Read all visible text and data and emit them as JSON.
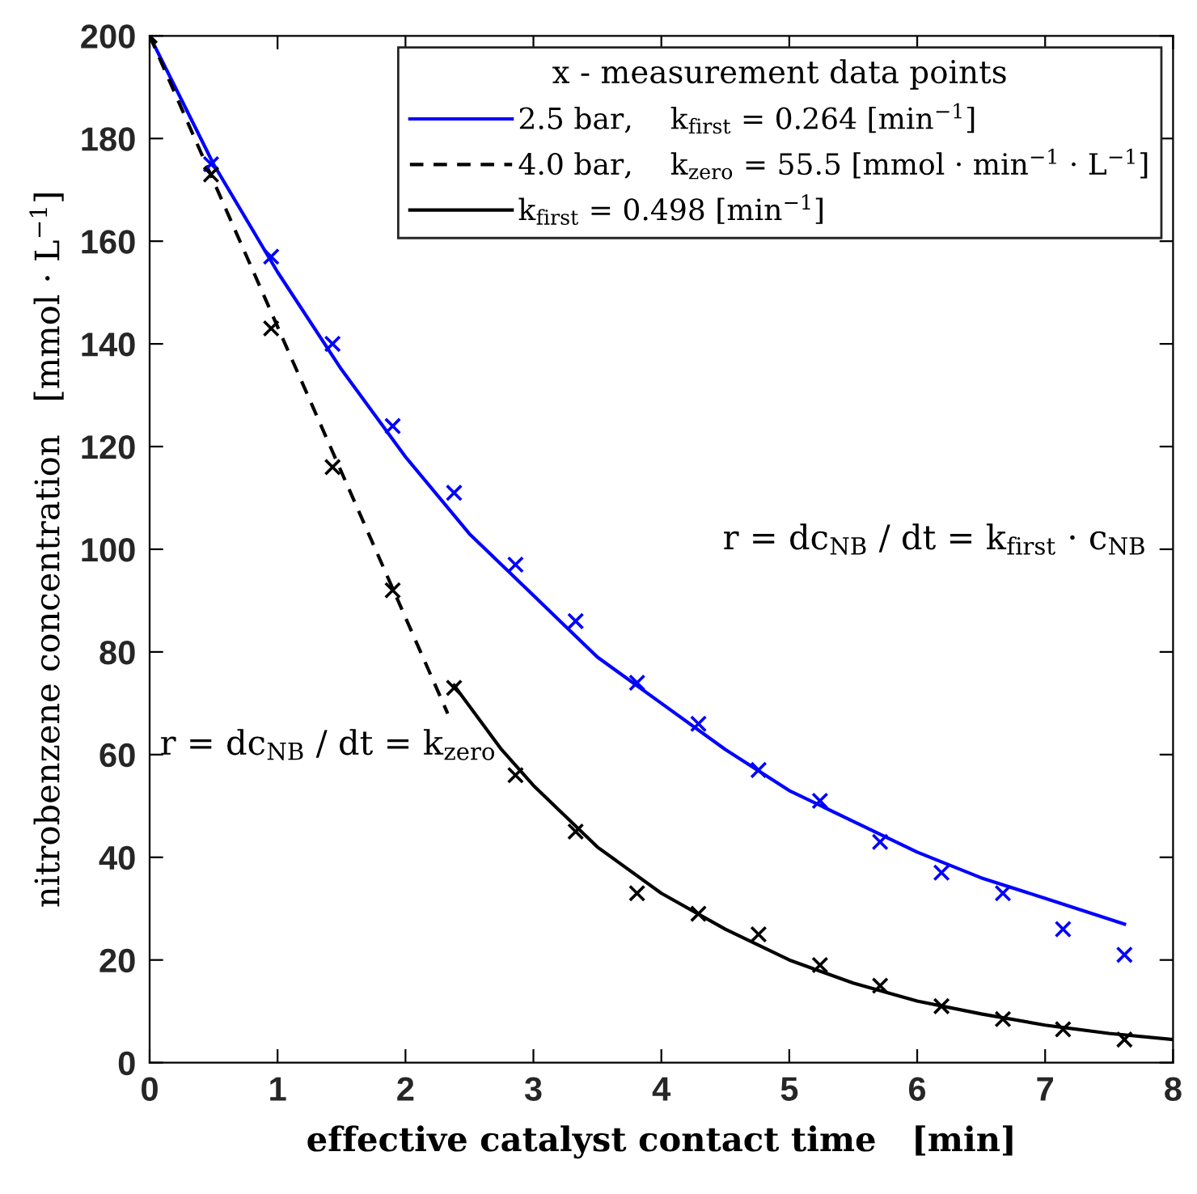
{
  "chart_data": {
    "type": "line",
    "xlabel": "effective catalyst contact time   [min]",
    "ylabel": "nitrobenzene concentration   [mmol · L$^{−1}$]",
    "legend_title": "x - measurement data points",
    "legend": "top right",
    "grid": false,
    "xlim": [
      0,
      8
    ],
    "xticks": [
      0,
      1,
      2,
      3,
      4,
      5,
      6,
      7,
      8
    ],
    "ylim": [
      0,
      200
    ],
    "yticks": [
      0,
      20,
      40,
      60,
      80,
      100,
      120,
      140,
      160,
      180,
      200
    ],
    "series": [
      {
        "type": "scatter",
        "color": "#0000ff",
        "marker": "cross",
        "x": [
          0.48,
          0.95,
          1.43,
          1.9,
          2.38,
          2.86,
          3.33,
          3.81,
          4.29,
          4.76,
          5.24,
          5.71,
          6.19,
          6.67,
          7.14,
          7.62
        ],
        "values": [
          175,
          157,
          140,
          124,
          111,
          97,
          86,
          74,
          66,
          57,
          51,
          43,
          37,
          33,
          26,
          21
        ]
      },
      {
        "type": "scatter",
        "color": "#000000",
        "marker": "cross",
        "x": [
          0,
          0.48,
          0.95,
          1.43,
          1.9,
          2.38,
          2.86,
          3.33,
          3.81,
          4.29,
          4.76,
          5.24,
          5.71,
          6.19,
          6.67,
          7.14,
          7.62
        ],
        "values": [
          200,
          173,
          143,
          116,
          92,
          73,
          56,
          45,
          33,
          29,
          25,
          19,
          15,
          11,
          8.5,
          6.5,
          4.5
        ]
      },
      {
        "name": "2.5 bar,    k$_{first}$ = 0.264 [min$^{−1}$]",
        "color": "#0000ff",
        "line_style": "solid",
        "marker": "none",
        "x": [
          0,
          0.5,
          1,
          1.5,
          2,
          2.5,
          3,
          3.5,
          4,
          4.5,
          5,
          5.5,
          6,
          6.5,
          7,
          7.62
        ],
        "values": [
          200,
          175,
          154,
          135,
          118,
          103,
          91,
          79,
          70,
          61,
          53,
          47,
          41,
          36,
          32,
          27
        ]
      },
      {
        "name": "4.0 bar,    k$_{zero}$ = 55.5 [mmol · min$^{−1}$ · L$^{−1}$]",
        "color": "#000000",
        "line_style": "dashed",
        "marker": "none",
        "x": [
          0,
          2.33
        ],
        "values": [
          200,
          68
        ]
      },
      {
        "name": "k$_{first}$ = 0.498 [min$^{−1}$]",
        "color": "#000000",
        "line_style": "solid",
        "marker": "none",
        "x": [
          2.38,
          2.75,
          3,
          3.5,
          4,
          4.5,
          5,
          5.5,
          6,
          6.5,
          7,
          7.5,
          8
        ],
        "values": [
          73.5,
          61,
          54,
          42,
          33,
          26,
          20,
          15.5,
          12,
          9.5,
          7.3,
          5.7,
          4.5
        ]
      }
    ],
    "annotations": [
      "r = dc$_{NB}$ / dt = k$_{first}$ · c$_{NB}$",
      "r = dc$_{NB}$ / dt = k$_{zero}$"
    ]
  }
}
